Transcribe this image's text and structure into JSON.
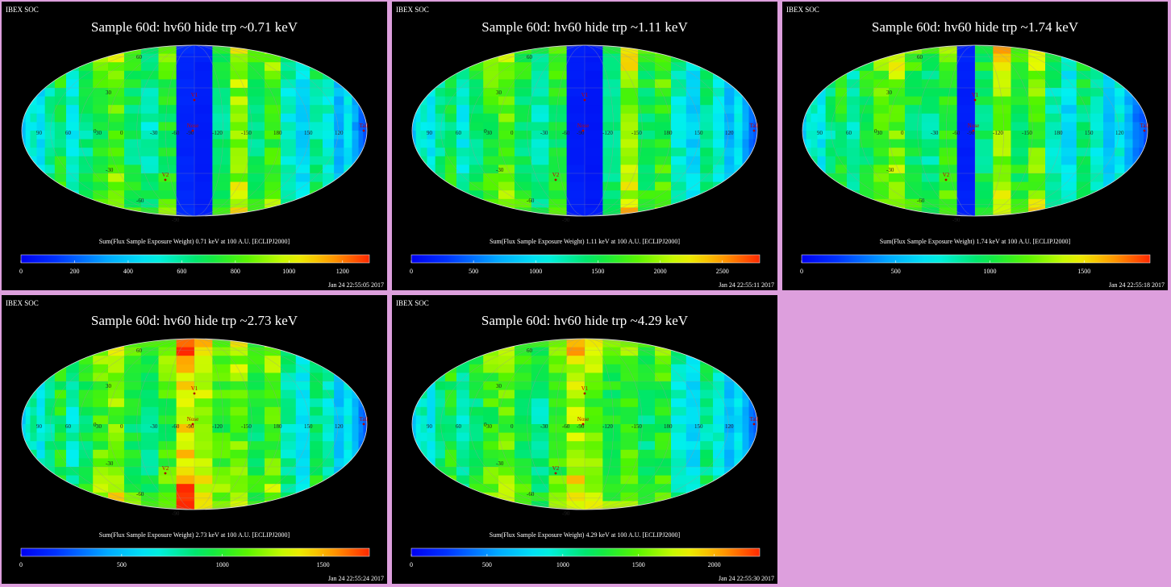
{
  "page": {
    "background": "#dd9fdd",
    "panel_background": "#000000"
  },
  "chart_data": [
    {
      "type": "heatmap",
      "projection": "mollweide",
      "header": "IBEX SOC",
      "title": "Sample 60d: hv60 hide trp ~0.71 keV",
      "colorbar_label": "Sum(Flux Sample Exposure Weight)  0.71 keV at 100 A.U. [ECLIPJ2000]",
      "colorbar_range": [
        0,
        1300
      ],
      "colorbar_ticks": [
        "0",
        "200",
        "400",
        "600",
        "800",
        "1000",
        "1200"
      ],
      "colorbar_tick_values": [
        0,
        200,
        400,
        600,
        800,
        1000,
        1200
      ],
      "timestamp": "Jan 24 22:55:05 2017",
      "lat_labels": [
        "60",
        "30",
        "0",
        "-30",
        "-60",
        "-90"
      ],
      "lon_labels": [
        "90",
        "60",
        "30",
        "0",
        "-30",
        "-60",
        "-90",
        "-120",
        "-150",
        "180",
        "150",
        "120"
      ],
      "markers": [
        "V1",
        "Nose",
        "V2",
        "Tail"
      ],
      "strip_values": [
        280,
        380,
        480,
        520,
        430,
        560,
        680,
        500,
        620,
        720,
        820,
        640,
        560,
        700,
        90,
        70,
        620,
        860,
        640,
        760,
        520,
        420,
        600,
        520,
        340,
        470,
        320,
        230,
        180,
        150
      ],
      "grid": true
    },
    {
      "type": "heatmap",
      "projection": "mollweide",
      "header": "IBEX SOC",
      "title": "Sample 60d: hv60 hide trp ~1.11 keV",
      "colorbar_label": "Sum(Flux Sample Exposure Weight)  1.11 keV at 100 A.U. [ECLIPJ2000]",
      "colorbar_range": [
        0,
        2800
      ],
      "colorbar_ticks": [
        "0",
        "500",
        "1000",
        "1500",
        "2000",
        "2500"
      ],
      "colorbar_tick_values": [
        0,
        500,
        1000,
        1500,
        2000,
        2500
      ],
      "timestamp": "Jan 24 22:55:11 2017",
      "lat_labels": [
        "60",
        "30",
        "0",
        "-30",
        "-60",
        "-90"
      ],
      "lon_labels": [
        "90",
        "60",
        "30",
        "0",
        "-30",
        "-60",
        "-90",
        "-120",
        "-150",
        "180",
        "150",
        "120"
      ],
      "markers": [
        "V1",
        "Nose",
        "V2",
        "Tail"
      ],
      "strip_values": [
        600,
        820,
        1050,
        1150,
        980,
        1250,
        1450,
        1100,
        1350,
        1600,
        1750,
        1400,
        1200,
        1500,
        150,
        120,
        1300,
        1850,
        1400,
        1650,
        1150,
        900,
        1300,
        1100,
        750,
        1000,
        700,
        500,
        400,
        320
      ],
      "grid": true
    },
    {
      "type": "heatmap",
      "projection": "mollweide",
      "header": "IBEX SOC",
      "title": "Sample 60d: hv60 hide trp ~1.74 keV",
      "colorbar_label": "Sum(Flux Sample Exposure Weight)  1.74 keV at 100 A.U. [ECLIPJ2000]",
      "colorbar_range": [
        0,
        1850
      ],
      "colorbar_ticks": [
        "0",
        "500",
        "1000",
        "1500"
      ],
      "colorbar_tick_values": [
        0,
        500,
        1000,
        1500
      ],
      "timestamp": "Jan 24 22:55:18 2017",
      "lat_labels": [
        "60",
        "30",
        "0",
        "-30",
        "-60",
        "-90"
      ],
      "lon_labels": [
        "90",
        "60",
        "30",
        "0",
        "-30",
        "-60",
        "-90",
        "-120",
        "-150",
        "180",
        "150",
        "120"
      ],
      "markers": [
        "V1",
        "Nose",
        "V2",
        "Tail"
      ],
      "strip_values": [
        420,
        560,
        720,
        800,
        680,
        860,
        1000,
        760,
        940,
        1100,
        1200,
        960,
        840,
        1050,
        110,
        900,
        1250,
        960,
        1150,
        800,
        620,
        900,
        760,
        520,
        700,
        480,
        350,
        300,
        240,
        200
      ],
      "grid": true
    },
    {
      "type": "heatmap",
      "projection": "mollweide",
      "header": "IBEX SOC",
      "title": "Sample 60d: hv60 hide trp ~2.73 keV",
      "colorbar_label": "Sum(Flux Sample Exposure Weight)  2.73 keV at 100 A.U. [ECLIPJ2000]",
      "colorbar_range": [
        0,
        1730
      ],
      "colorbar_ticks": [
        "0",
        "500",
        "1000",
        "1500"
      ],
      "colorbar_tick_values": [
        0,
        500,
        1000,
        1500
      ],
      "timestamp": "Jan 24 22:55:24 2017",
      "lat_labels": [
        "60",
        "30",
        "0",
        "-30",
        "-60",
        "-90"
      ],
      "lon_labels": [
        "90",
        "60",
        "30",
        "0",
        "-30",
        "-60",
        "-90",
        "-120",
        "-150",
        "180",
        "150",
        "120"
      ],
      "markers": [
        "V1",
        "Nose",
        "V2",
        "Tail"
      ],
      "strip_values": [
        400,
        540,
        680,
        760,
        640,
        820,
        950,
        720,
        900,
        1050,
        1150,
        920,
        820,
        1000,
        1400,
        1250,
        1000,
        1100,
        900,
        1050,
        760,
        600,
        850,
        720,
        500,
        640,
        450,
        340,
        280,
        230
      ],
      "grid": true
    },
    {
      "type": "heatmap",
      "projection": "mollweide",
      "header": "IBEX SOC",
      "title": "Sample 60d: hv60 hide trp ~4.29 keV",
      "colorbar_label": "Sum(Flux Sample Exposure Weight)  4.29 keV at 100 A.U. [ECLIPJ2000]",
      "colorbar_range": [
        0,
        2300
      ],
      "colorbar_ticks": [
        "0",
        "500",
        "1000",
        "1500",
        "2000"
      ],
      "colorbar_tick_values": [
        0,
        500,
        1000,
        1500,
        2000
      ],
      "timestamp": "Jan 24 22:55:30 2017",
      "lat_labels": [
        "60",
        "30",
        "0",
        "-30",
        "-60",
        "-90"
      ],
      "lon_labels": [
        "90",
        "60",
        "30",
        "0",
        "-30",
        "-60",
        "-90",
        "-120",
        "-150",
        "180",
        "150",
        "120"
      ],
      "markers": [
        "V1",
        "Nose",
        "V2",
        "Tail"
      ],
      "strip_values": [
        520,
        700,
        900,
        1000,
        850,
        1080,
        1250,
        950,
        1150,
        1350,
        1450,
        1200,
        1050,
        1300,
        1600,
        1450,
        1250,
        1350,
        1100,
        1300,
        950,
        760,
        1050,
        900,
        640,
        820,
        580,
        430,
        350,
        290
      ],
      "grid": true
    }
  ]
}
